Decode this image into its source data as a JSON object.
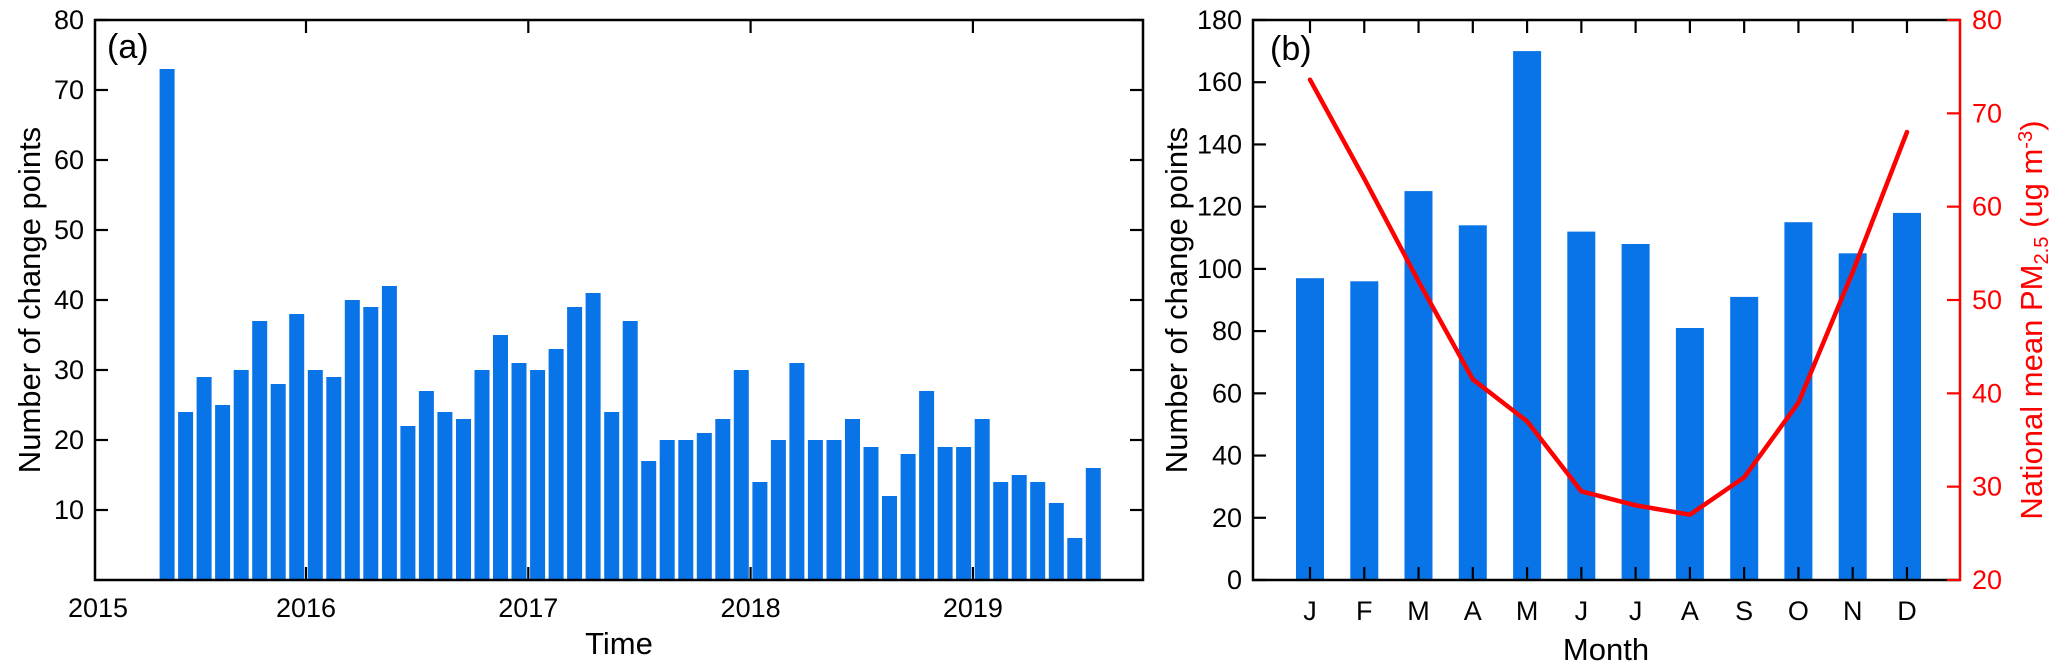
{
  "figure": {
    "panel_a": {
      "label": "(a)",
      "xlabel": "Time",
      "ylabel": "Number of change points"
    },
    "panel_b": {
      "label": "(b)",
      "xlabel": "Month",
      "ylabel": "Number of change points",
      "right_label_prefix": "National mean PM",
      "right_label_sub": "2.5",
      "right_label_mid": " (ug m",
      "right_label_sup": "-3",
      "right_label_suffix": ")"
    }
  },
  "chart_data": [
    {
      "id": "a",
      "type": "bar",
      "title": "(a)",
      "xlabel": "Time",
      "ylabel": "Number of change points",
      "ylim": [
        0,
        80
      ],
      "yticks": [
        10,
        20,
        30,
        40,
        50,
        60,
        70,
        80
      ],
      "xtick_years": [
        "2015",
        "2016",
        "2017",
        "2018",
        "2019"
      ],
      "bar_color": "#0874e8",
      "grid": false,
      "points": [
        {
          "date": "2015-05",
          "value": 73
        },
        {
          "date": "2015-06",
          "value": 24
        },
        {
          "date": "2015-07",
          "value": 29
        },
        {
          "date": "2015-08",
          "value": 25
        },
        {
          "date": "2015-09",
          "value": 30
        },
        {
          "date": "2015-10",
          "value": 37
        },
        {
          "date": "2015-11",
          "value": 28
        },
        {
          "date": "2015-12",
          "value": 38
        },
        {
          "date": "2016-01",
          "value": 30
        },
        {
          "date": "2016-02",
          "value": 29
        },
        {
          "date": "2016-03",
          "value": 40
        },
        {
          "date": "2016-04",
          "value": 39
        },
        {
          "date": "2016-05",
          "value": 42
        },
        {
          "date": "2016-06",
          "value": 22
        },
        {
          "date": "2016-07",
          "value": 27
        },
        {
          "date": "2016-08",
          "value": 24
        },
        {
          "date": "2016-09",
          "value": 23
        },
        {
          "date": "2016-10",
          "value": 30
        },
        {
          "date": "2016-11",
          "value": 35
        },
        {
          "date": "2016-12",
          "value": 31
        },
        {
          "date": "2017-01",
          "value": 30
        },
        {
          "date": "2017-02",
          "value": 33
        },
        {
          "date": "2017-03",
          "value": 39
        },
        {
          "date": "2017-04",
          "value": 41
        },
        {
          "date": "2017-05",
          "value": 24
        },
        {
          "date": "2017-06",
          "value": 37
        },
        {
          "date": "2017-07",
          "value": 17
        },
        {
          "date": "2017-08",
          "value": 20
        },
        {
          "date": "2017-09",
          "value": 20
        },
        {
          "date": "2017-10",
          "value": 21
        },
        {
          "date": "2017-11",
          "value": 23
        },
        {
          "date": "2017-12",
          "value": 30
        },
        {
          "date": "2018-01",
          "value": 14
        },
        {
          "date": "2018-02",
          "value": 20
        },
        {
          "date": "2018-03",
          "value": 31
        },
        {
          "date": "2018-04",
          "value": 20
        },
        {
          "date": "2018-05",
          "value": 20
        },
        {
          "date": "2018-06",
          "value": 23
        },
        {
          "date": "2018-07",
          "value": 19
        },
        {
          "date": "2018-08",
          "value": 12
        },
        {
          "date": "2018-09",
          "value": 18
        },
        {
          "date": "2018-10",
          "value": 27
        },
        {
          "date": "2018-11",
          "value": 19
        },
        {
          "date": "2018-12",
          "value": 19
        },
        {
          "date": "2019-01",
          "value": 23
        },
        {
          "date": "2019-02",
          "value": 14
        },
        {
          "date": "2019-03",
          "value": 15
        },
        {
          "date": "2019-04",
          "value": 14
        },
        {
          "date": "2019-05",
          "value": 11
        },
        {
          "date": "2019-06",
          "value": 6
        },
        {
          "date": "2019-07",
          "value": 16
        }
      ]
    },
    {
      "id": "b",
      "type": "bar+line",
      "title": "(b)",
      "xlabel": "Month",
      "categories": [
        "J",
        "F",
        "M",
        "A",
        "M",
        "J",
        "J",
        "A",
        "S",
        "O",
        "N",
        "D"
      ],
      "bars": {
        "name": "Number of change points",
        "color": "#0874e8",
        "ylim": [
          0,
          180
        ],
        "yticks": [
          0,
          20,
          40,
          60,
          80,
          100,
          120,
          140,
          160,
          180
        ],
        "values": [
          97,
          96,
          125,
          114,
          170,
          112,
          108,
          81,
          91,
          115,
          105,
          118
        ]
      },
      "line": {
        "name": "National mean PM2.5 (ug m-3)",
        "color": "#ff0000",
        "ylim": [
          20,
          80
        ],
        "yticks": [
          20,
          30,
          40,
          50,
          60,
          70,
          80
        ],
        "values": [
          73.6,
          63,
          52,
          41.5,
          37,
          29.5,
          28,
          27,
          31,
          39,
          53,
          68
        ]
      },
      "grid": false
    }
  ]
}
